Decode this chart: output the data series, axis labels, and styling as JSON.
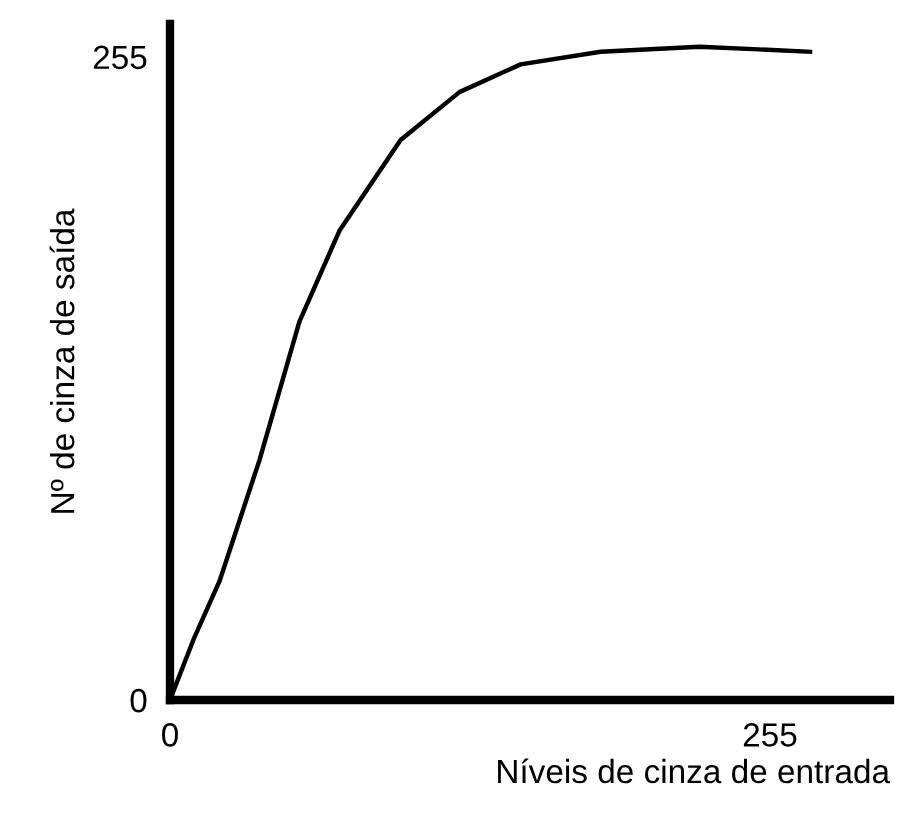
{
  "chart_data": {
    "type": "line",
    "xlabel": "Níveis de cinza de entrada",
    "ylabel": "Nº de cinza de saída",
    "x": [
      0,
      10,
      21,
      38,
      55,
      72,
      98,
      123,
      149,
      183,
      225,
      272
    ],
    "series": [
      {
        "color": "#000000",
        "values": [
          0,
          24,
          47,
          95,
          150,
          186,
          222,
          241,
          252,
          257,
          259,
          257
        ]
      }
    ],
    "xlim": [
      0,
      306
    ],
    "ylim": [
      0,
      268
    ],
    "xticks": [
      0,
      255
    ],
    "yticks": [
      0,
      255
    ],
    "grid": false,
    "legend": false
  }
}
